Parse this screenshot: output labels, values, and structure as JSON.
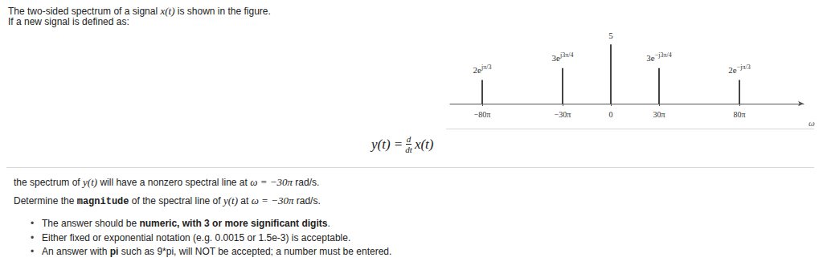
{
  "header": [
    [
      {
        "text": "The two-sided spectrum of a signal "
      },
      {
        "text": "x(t)",
        "style": "math"
      },
      {
        "text": " is shown in the figure."
      }
    ],
    [
      {
        "text": "If a new signal is defined as:"
      }
    ]
  ],
  "chart_data": {
    "type": "stem",
    "x": [
      -80,
      -30,
      0,
      30,
      80
    ],
    "values": [
      2,
      3,
      5,
      3,
      2
    ],
    "value_labels": [
      {
        "base": "2e",
        "exponent": "jπ/3"
      },
      {
        "base": "3e",
        "exponent": "j3π/4"
      },
      "5",
      {
        "base": "3e",
        "exponent": "−j3π/4"
      },
      {
        "base": "2e",
        "exponent": "−jπ/3"
      }
    ],
    "xlim": [
      -100,
      120
    ],
    "xticks": [
      {
        "value": -80,
        "label": "−80π"
      },
      {
        "value": -30,
        "label": "−30π"
      },
      0,
      {
        "value": 30,
        "label": "30π"
      },
      {
        "value": 80,
        "label": "80π"
      }
    ],
    "ylim": [
      0,
      5.5
    ],
    "x_label": "ω",
    "data_labels": true,
    "tick_labels": "x",
    "color": "#444444"
  },
  "equation": {
    "lhs": "y(t) =",
    "numerator": "d",
    "denominator": "dt",
    "rhs": "x(t)"
  },
  "question": [
    [
      {
        "text": "the spectrum of "
      },
      {
        "text": "y(t)",
        "style": "math"
      },
      {
        "text": " will have a nonzero spectral line at "
      },
      {
        "text": "ω",
        "style": "math"
      },
      {
        "text": " = −30π",
        "style": "math"
      },
      {
        "text": " rad/s."
      }
    ],
    [
      {
        "text": "Determine the "
      },
      {
        "text": "magnitude",
        "style": "code"
      },
      {
        "text": " of the spectral line of "
      },
      {
        "text": "y(t)",
        "style": "math"
      },
      {
        "text": " at "
      },
      {
        "text": "ω",
        "style": "math"
      },
      {
        "text": " = −30π",
        "style": "math"
      },
      {
        "text": " rad/s."
      }
    ]
  ],
  "bullets": [
    [
      {
        "text": "The answer should be "
      },
      {
        "text": "numeric, with 3 or more significant digits",
        "style": "bold"
      },
      {
        "text": "."
      }
    ],
    [
      {
        "text": "Either fixed or exponential notation (e.g. 0.0015 or 1.5e-3) is acceptable."
      }
    ],
    [
      {
        "text": "An answer with "
      },
      {
        "text": "pi",
        "style": "bold"
      },
      {
        "text": " such as 9*pi, will NOT be accepted; a number must be entered."
      }
    ]
  ]
}
